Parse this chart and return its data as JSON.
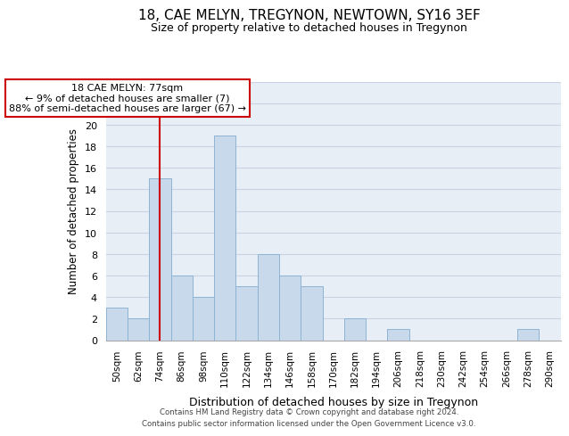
{
  "title": "18, CAE MELYN, TREGYNON, NEWTOWN, SY16 3EF",
  "subtitle": "Size of property relative to detached houses in Tregynon",
  "xlabel": "Distribution of detached houses by size in Tregynon",
  "ylabel": "Number of detached properties",
  "bin_labels": [
    "50sqm",
    "62sqm",
    "74sqm",
    "86sqm",
    "98sqm",
    "110sqm",
    "122sqm",
    "134sqm",
    "146sqm",
    "158sqm",
    "170sqm",
    "182sqm",
    "194sqm",
    "206sqm",
    "218sqm",
    "230sqm",
    "242sqm",
    "254sqm",
    "266sqm",
    "278sqm",
    "290sqm"
  ],
  "bar_heights": [
    3,
    2,
    15,
    6,
    4,
    19,
    5,
    8,
    6,
    5,
    0,
    2,
    0,
    1,
    0,
    0,
    0,
    0,
    0,
    1,
    0
  ],
  "bar_color": "#c8d9ec",
  "bar_edge_color": "#8db3d4",
  "ylim": [
    0,
    24
  ],
  "yticks": [
    0,
    2,
    4,
    6,
    8,
    10,
    12,
    14,
    16,
    18,
    20,
    22,
    24
  ],
  "property_line_bin_index": 2,
  "annotation_title": "18 CAE MELYN: 77sqm",
  "annotation_line1": "← 9% of detached houses are smaller (7)",
  "annotation_line2": "88% of semi-detached houses are larger (67) →",
  "annotation_box_color": "#ffffff",
  "annotation_box_edge_color": "#cc0000",
  "vline_color": "#cc0000",
  "grid_color": "#c8d4e3",
  "bg_color": "#e8eef6",
  "footer_line1": "Contains HM Land Registry data © Crown copyright and database right 2024.",
  "footer_line2": "Contains public sector information licensed under the Open Government Licence v3.0."
}
